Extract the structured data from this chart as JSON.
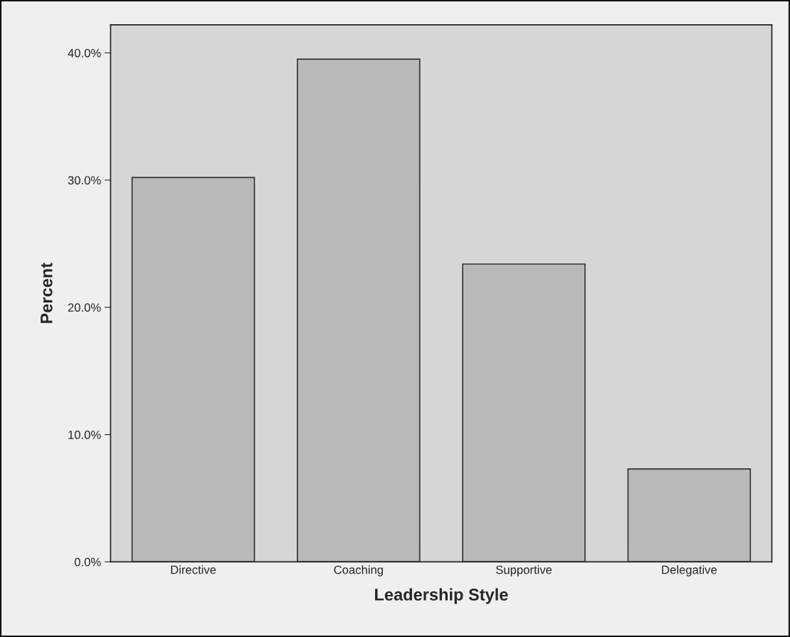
{
  "chart_data": {
    "type": "bar",
    "xlabel": "Leadership Style",
    "ylabel": "Percent",
    "categories": [
      "Directive",
      "Coaching",
      "Supportive",
      "Delegative"
    ],
    "values": [
      30.2,
      39.5,
      23.4,
      7.3
    ],
    "color": "#b9b9b9",
    "ylim": [
      0,
      42.2
    ],
    "yticks": [
      {
        "value": 0,
        "label": "0.0%"
      },
      {
        "value": 10,
        "label": "10.0%"
      },
      {
        "value": 20,
        "label": "20.0%"
      },
      {
        "value": 30,
        "label": "30.0%"
      },
      {
        "value": 40,
        "label": "40.0%"
      }
    ],
    "grid": false
  }
}
